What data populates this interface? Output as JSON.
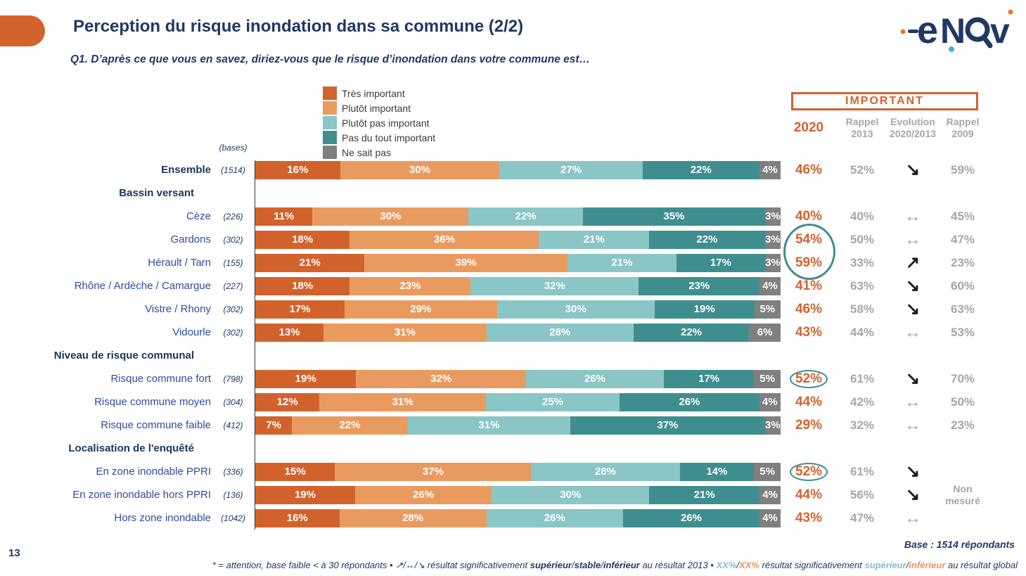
{
  "header": {
    "title": "Perception du risque inondation dans sa commune (2/2)",
    "question": "Q1. D’après ce que vous en savez, diriez-vous que le risque d’inondation dans votre commune est…",
    "logo_text": "enov"
  },
  "legend": [
    {
      "label": "Très important",
      "color": "#D2622C"
    },
    {
      "label": "Plutôt important",
      "color": "#E99B5F"
    },
    {
      "label": "Plutôt pas important",
      "color": "#8AC6C5"
    },
    {
      "label": "Pas du tout important",
      "color": "#3F8E8F"
    },
    {
      "label": "Ne sait pas",
      "color": "#7F7F7F"
    }
  ],
  "columns": {
    "important_box": "IMPORTANT",
    "col_2020": "2020",
    "col_rappel2013": "Rappel 2013",
    "col_evolution": "Evolution 2020/2013",
    "col_rappel2009": "Rappel 2009",
    "bases_label": "(bases)"
  },
  "chart_data": {
    "type": "bar",
    "orientation": "horizontal-stacked",
    "series_labels": [
      "Très important",
      "Plutôt important",
      "Plutôt pas important",
      "Pas du tout important",
      "Ne sait pas"
    ],
    "series_colors": [
      "#D2622C",
      "#E99B5F",
      "#8AC6C5",
      "#3F8E8F",
      "#7F7F7F"
    ],
    "evolution_glyphs": {
      "up": "↗",
      "stable": "↔",
      "down": "↘"
    },
    "rows": [
      {
        "type": "data",
        "label": "Ensemble",
        "bold": true,
        "base": "(1514)",
        "values": [
          16,
          30,
          27,
          22,
          4
        ],
        "v2020": "46%",
        "circled": false,
        "v2013": "52%",
        "evolution": "down",
        "v2009": "59%"
      },
      {
        "type": "section",
        "label": "Bassin versant"
      },
      {
        "type": "data",
        "label": "Cèze",
        "bold": false,
        "base": "(226)",
        "values": [
          11,
          30,
          22,
          35,
          3
        ],
        "v2020": "40%",
        "circled": false,
        "v2013": "40%",
        "evolution": "stable",
        "v2009": "45%"
      },
      {
        "type": "data",
        "label": "Gardons",
        "bold": false,
        "base": "(302)",
        "values": [
          18,
          36,
          21,
          22,
          3
        ],
        "v2020": "54%",
        "circled": false,
        "v2013": "50%",
        "evolution": "stable",
        "v2009": "47%"
      },
      {
        "type": "data",
        "label": "Hérault / Tarn",
        "bold": false,
        "base": "(155)",
        "values": [
          21,
          39,
          21,
          17,
          3
        ],
        "v2020": "59%",
        "circled": false,
        "v2013": "33%",
        "evolution": "up",
        "v2009": "23%"
      },
      {
        "type": "data",
        "label": "Rhône / Ardèche / Camargue",
        "bold": false,
        "base": "(227)",
        "values": [
          18,
          23,
          32,
          23,
          4
        ],
        "v2020": "41%",
        "circled": false,
        "v2013": "63%",
        "evolution": "down",
        "v2009": "60%"
      },
      {
        "type": "data",
        "label": "Vistre / Rhony",
        "bold": false,
        "base": "(302)",
        "values": [
          17,
          29,
          30,
          19,
          5
        ],
        "v2020": "46%",
        "circled": false,
        "v2013": "58%",
        "evolution": "down",
        "v2009": "63%"
      },
      {
        "type": "data",
        "label": "Vidourle",
        "bold": false,
        "base": "(302)",
        "values": [
          13,
          31,
          28,
          22,
          6
        ],
        "v2020": "43%",
        "circled": false,
        "v2013": "44%",
        "evolution": "stable",
        "v2009": "53%"
      },
      {
        "type": "section",
        "label": "Niveau de risque communal"
      },
      {
        "type": "data",
        "label": "Risque commune fort",
        "bold": false,
        "base": "(798)",
        "values": [
          19,
          32,
          26,
          17,
          5
        ],
        "v2020": "52%",
        "circled": true,
        "v2013": "61%",
        "evolution": "down",
        "v2009": "70%"
      },
      {
        "type": "data",
        "label": "Risque commune moyen",
        "bold": false,
        "base": "(304)",
        "values": [
          12,
          31,
          25,
          26,
          4
        ],
        "v2020": "44%",
        "circled": false,
        "v2013": "42%",
        "evolution": "stable",
        "v2009": "50%"
      },
      {
        "type": "data",
        "label": "Risque commune faible",
        "bold": false,
        "base": "(412)",
        "values": [
          7,
          22,
          31,
          37,
          3
        ],
        "v2020": "29%",
        "circled": false,
        "v2013": "32%",
        "evolution": "stable",
        "v2009": "23%"
      },
      {
        "type": "section",
        "label": "Localisation de l'enquêté"
      },
      {
        "type": "data",
        "label": "En zone inondable PPRI",
        "bold": false,
        "base": "(336)",
        "values": [
          15,
          37,
          28,
          14,
          5
        ],
        "v2020": "52%",
        "circled": true,
        "v2013": "61%",
        "evolution": "down",
        "v2009": ""
      },
      {
        "type": "data",
        "label": "En zone inondable hors PPRI",
        "bold": false,
        "base": "(136)",
        "values": [
          19,
          26,
          30,
          21,
          4
        ],
        "v2020": "44%",
        "circled": false,
        "v2013": "56%",
        "evolution": "down",
        "v2009": "Non\nmesuré",
        "v2009_small": true
      },
      {
        "type": "data",
        "label": "Hors zone inondable",
        "bold": false,
        "base": "(1042)",
        "values": [
          16,
          28,
          26,
          26,
          4
        ],
        "v2020": "43%",
        "circled": false,
        "v2013": "47%",
        "evolution": "stable",
        "v2009": ""
      }
    ],
    "annotations": {
      "pair_circle": "ellipse around 2020 values 54% (Gardons) and 59% (Hérault / Tarn)"
    }
  },
  "footer": {
    "base_note": "Base : 1514 répondants",
    "page_number": "13",
    "footnote_parts": [
      {
        "t": "* = attention, base faible < à 30 répondants • ↗/↔/↘  résultat significativement "
      },
      {
        "t": "supérieur",
        "b": true
      },
      {
        "t": "/"
      },
      {
        "t": "stable",
        "b": true
      },
      {
        "t": "/"
      },
      {
        "t": "inférieur",
        "b": true
      },
      {
        "t": " au résultat 2013 • "
      },
      {
        "t": "XX%",
        "c": "teal",
        "b": true
      },
      {
        "t": "/"
      },
      {
        "t": "XX%",
        "c": "orange",
        "b": true
      },
      {
        "t": " résultat significativement "
      },
      {
        "t": "supérieur",
        "c": "teal",
        "b": true
      },
      {
        "t": "/"
      },
      {
        "t": "inférieur",
        "c": "orange",
        "b": true
      },
      {
        "t": " au résultat global"
      }
    ]
  }
}
